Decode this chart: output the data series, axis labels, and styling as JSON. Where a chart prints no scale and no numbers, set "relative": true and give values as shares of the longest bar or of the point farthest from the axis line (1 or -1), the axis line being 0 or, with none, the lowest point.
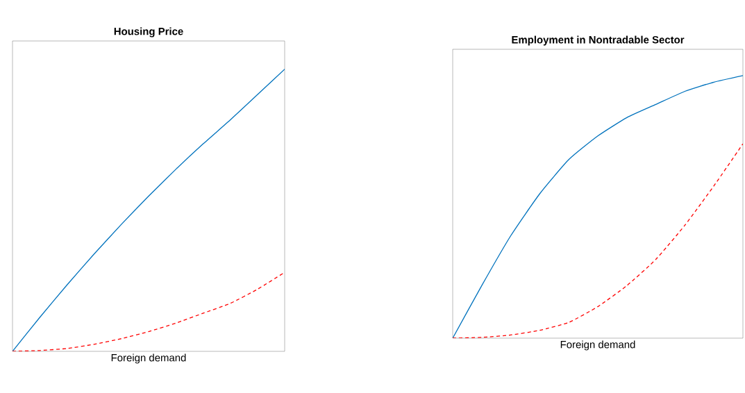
{
  "chart_data": [
    {
      "type": "line",
      "title": "Housing Price",
      "xlabel": "Foreign demand",
      "relative": true,
      "tick_labels": false,
      "categories": [
        null,
        null,
        null,
        null,
        null,
        null,
        null,
        null,
        null,
        null,
        null
      ],
      "series": [
        {
          "color": "#0072bd",
          "line_style": "solid",
          "values": [
            0,
            0.12,
            0.235,
            0.345,
            0.45,
            0.55,
            0.645,
            0.735,
            0.82,
            0.91,
            1.0
          ]
        },
        {
          "color": "#ff0000",
          "line_style": "dashed",
          "values": [
            0,
            0.003,
            0.01,
            0.025,
            0.045,
            0.07,
            0.1,
            0.135,
            0.17,
            0.22,
            0.28
          ]
        }
      ]
    },
    {
      "type": "line",
      "title": "Employment in Nontradable Sector",
      "xlabel": "Foreign demand",
      "relative": true,
      "tick_labels": false,
      "categories": [
        null,
        null,
        null,
        null,
        null,
        null,
        null,
        null,
        null,
        null,
        null
      ],
      "series": [
        {
          "color": "#0072bd",
          "line_style": "solid",
          "values": [
            0,
            0.2,
            0.39,
            0.55,
            0.68,
            0.77,
            0.84,
            0.89,
            0.94,
            0.975,
            1.0
          ]
        },
        {
          "color": "#ff0000",
          "line_style": "dashed",
          "values": [
            0,
            0.003,
            0.012,
            0.03,
            0.06,
            0.12,
            0.2,
            0.3,
            0.43,
            0.58,
            0.74
          ]
        }
      ]
    }
  ]
}
